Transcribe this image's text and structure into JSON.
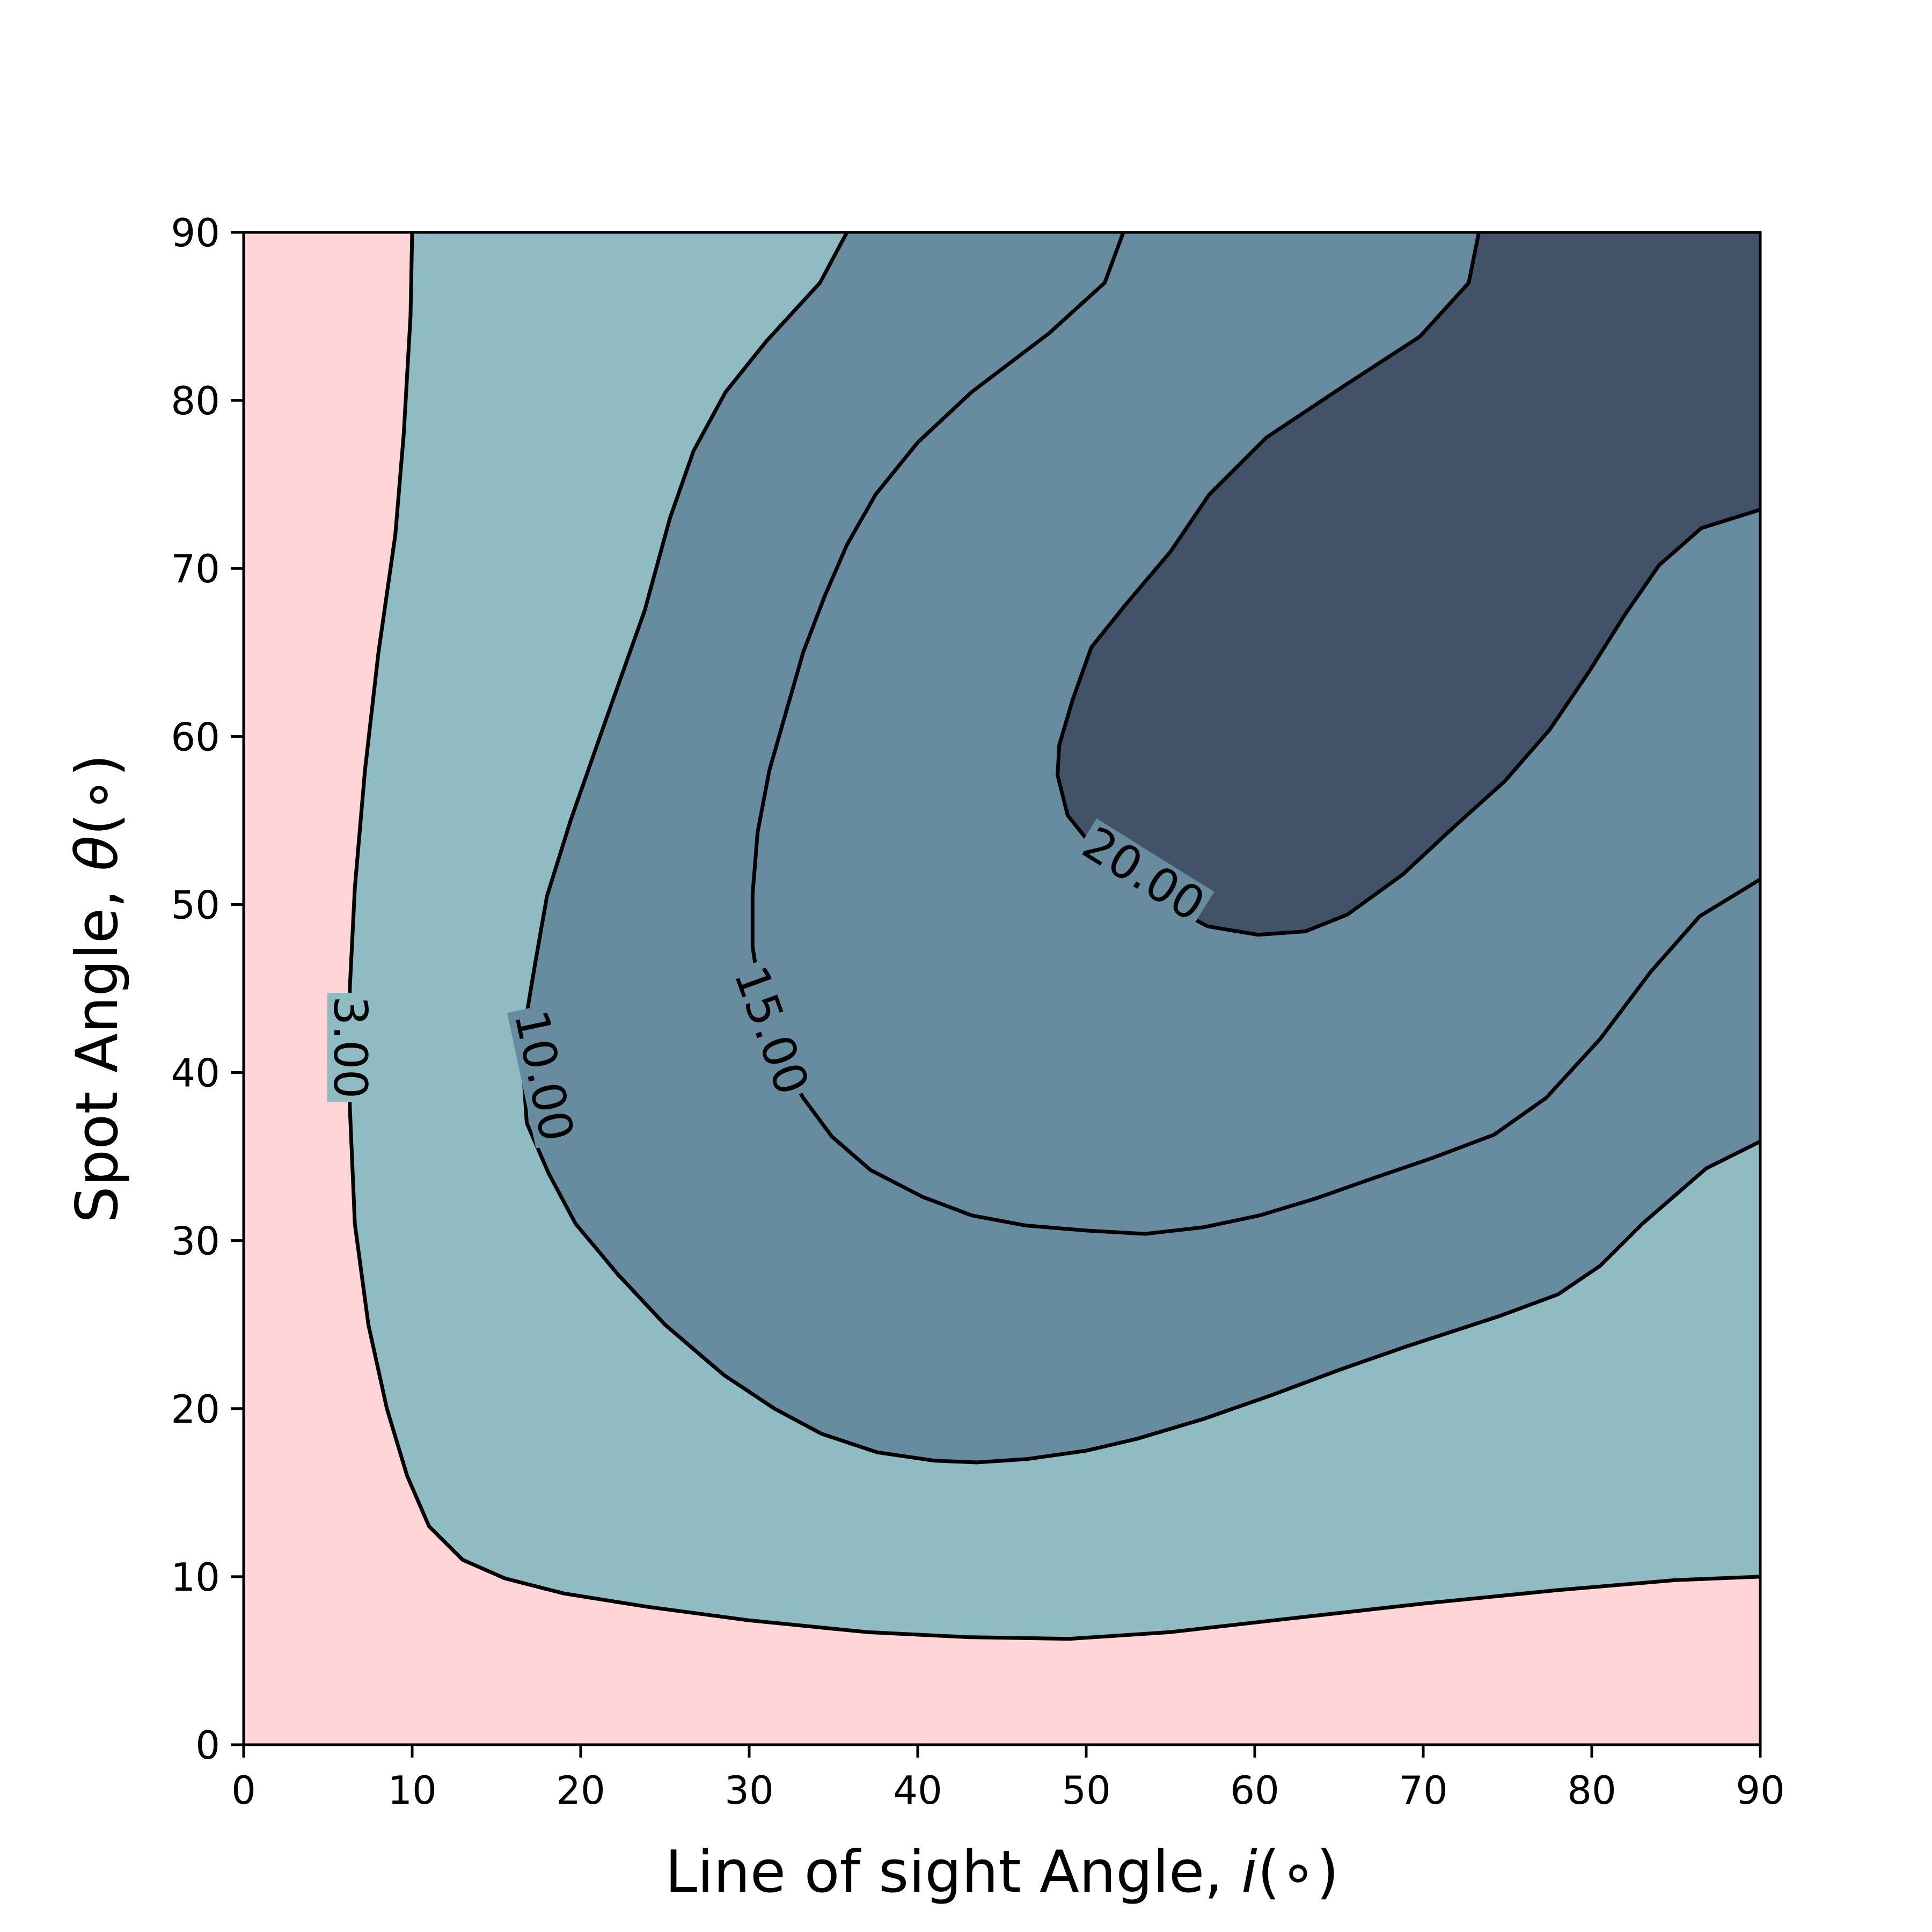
{
  "chart_data": {
    "type": "contour",
    "xlabel_main": "Line of sight Angle, ",
    "xlabel_var": "i",
    "xlabel_unit": "(∘)",
    "ylabel_main": "Spot Angle, ",
    "ylabel_var": "θ",
    "ylabel_unit": "(∘)",
    "xlim": [
      0,
      90
    ],
    "ylim": [
      0,
      90
    ],
    "xticks": [
      0,
      10,
      20,
      30,
      40,
      50,
      60,
      70,
      80,
      90
    ],
    "yticks": [
      0,
      10,
      20,
      30,
      40,
      50,
      60,
      70,
      80,
      90
    ],
    "colors": {
      "below_3": "#ffd5d7",
      "from_3_to_10": "#8ebcc2",
      "from_10_to_20": "#678c9f",
      "above_20": "#425369",
      "line": "#000000"
    },
    "levels": [
      {
        "value": 3,
        "label": "3.00",
        "label_at": [
          6.3,
          41.5
        ],
        "label_angle": 90,
        "points": [
          [
            10,
            90
          ],
          [
            9.9,
            85
          ],
          [
            9.5,
            78
          ],
          [
            9,
            72
          ],
          [
            8,
            65
          ],
          [
            7.2,
            58
          ],
          [
            6.6,
            51
          ],
          [
            6.3,
            45
          ],
          [
            6.3,
            38
          ],
          [
            6.6,
            31
          ],
          [
            7.4,
            25
          ],
          [
            8.5,
            20
          ],
          [
            9.7,
            16
          ],
          [
            11,
            13
          ],
          [
            13,
            11
          ],
          [
            15.5,
            9.9
          ],
          [
            19,
            9
          ],
          [
            24,
            8.2
          ],
          [
            30,
            7.4
          ],
          [
            37,
            6.7
          ],
          [
            43,
            6.4
          ],
          [
            49,
            6.3
          ],
          [
            55,
            6.7
          ],
          [
            62,
            7.5
          ],
          [
            70,
            8.4
          ],
          [
            78,
            9.2
          ],
          [
            85,
            9.8
          ],
          [
            90,
            10
          ]
        ]
      },
      {
        "value": 10,
        "label": "10.00",
        "label_at": [
          17.8,
          39.8
        ],
        "label_angle": 78,
        "points": [
          [
            35.8,
            90
          ],
          [
            34.2,
            87
          ],
          [
            31,
            83.5
          ],
          [
            28.6,
            80.5
          ],
          [
            26.7,
            77
          ],
          [
            25.3,
            73
          ],
          [
            23.8,
            67.5
          ],
          [
            21.5,
            61
          ],
          [
            19.4,
            55
          ],
          [
            18,
            50.5
          ],
          [
            17.3,
            46.5
          ],
          [
            16.8,
            43.5
          ],
          [
            16.6,
            40
          ],
          [
            16.8,
            37
          ],
          [
            18.1,
            34
          ],
          [
            19.7,
            31
          ],
          [
            22.2,
            28
          ],
          [
            25,
            25
          ],
          [
            28.5,
            22
          ],
          [
            31.5,
            20
          ],
          [
            34.3,
            18.5
          ],
          [
            37.6,
            17.4
          ],
          [
            41,
            16.9
          ],
          [
            43.5,
            16.8
          ],
          [
            46.5,
            17
          ],
          [
            50,
            17.5
          ],
          [
            53,
            18.2
          ],
          [
            57,
            19.4
          ],
          [
            61,
            20.8
          ],
          [
            65,
            22.3
          ],
          [
            69,
            23.7
          ],
          [
            74.5,
            25.5
          ],
          [
            78,
            26.8
          ],
          [
            80.5,
            28.5
          ],
          [
            83,
            31
          ],
          [
            86.8,
            34.3
          ],
          [
            90,
            35.9
          ]
        ]
      },
      {
        "value": 15,
        "label": "15.00",
        "label_at": [
          31.3,
          42.5
        ],
        "label_angle": 70,
        "points": [
          [
            52.2,
            90
          ],
          [
            51.1,
            87
          ],
          [
            47.8,
            84
          ],
          [
            43.2,
            80.5
          ],
          [
            40,
            77.5
          ],
          [
            37.5,
            74.4
          ],
          [
            35.8,
            71.4
          ],
          [
            34.5,
            68.4
          ],
          [
            33.2,
            65
          ],
          [
            32.2,
            61.5
          ],
          [
            31.2,
            58
          ],
          [
            30.5,
            54.3
          ],
          [
            30.2,
            50.6
          ],
          [
            30.2,
            47.5
          ],
          [
            30.7,
            44.2
          ],
          [
            31.8,
            41
          ],
          [
            33.2,
            38.5
          ],
          [
            34.9,
            36.2
          ],
          [
            37.2,
            34.2
          ],
          [
            40.3,
            32.6
          ],
          [
            43.2,
            31.5
          ],
          [
            46.4,
            30.9
          ],
          [
            50,
            30.6
          ],
          [
            53.5,
            30.4
          ],
          [
            57,
            30.8
          ],
          [
            60.3,
            31.5
          ],
          [
            63.6,
            32.5
          ],
          [
            67,
            33.7
          ],
          [
            70.5,
            34.9
          ],
          [
            74.2,
            36.3
          ],
          [
            77.3,
            38.5
          ],
          [
            80.5,
            42
          ],
          [
            83.5,
            46
          ],
          [
            86.4,
            49.3
          ],
          [
            90,
            51.5
          ]
        ]
      },
      {
        "value": 20,
        "label": "20.00",
        "label_at": [
          53.4,
          51.8
        ],
        "label_angle": 32,
        "points": [
          [
            73.3,
            90
          ],
          [
            72.7,
            87
          ],
          [
            69.8,
            83.8
          ],
          [
            65.2,
            80.8
          ],
          [
            60.7,
            77.8
          ],
          [
            57.3,
            74.4
          ],
          [
            55,
            71
          ],
          [
            52.3,
            67.8
          ],
          [
            50.3,
            65.3
          ],
          [
            49.2,
            62.2
          ],
          [
            48.4,
            59.5
          ],
          [
            48.3,
            57.7
          ],
          [
            48.9,
            55.3
          ],
          [
            50.5,
            53.3
          ],
          [
            52.7,
            51.5
          ],
          [
            55,
            49.9
          ],
          [
            57.2,
            48.7
          ],
          [
            60.2,
            48.2
          ],
          [
            63,
            48.4
          ],
          [
            65.5,
            49.4
          ],
          [
            68.8,
            51.8
          ],
          [
            71.8,
            54.6
          ],
          [
            74.8,
            57.3
          ],
          [
            77.5,
            60.4
          ],
          [
            79.8,
            63.8
          ],
          [
            82,
            67.3
          ],
          [
            84,
            70.2
          ],
          [
            86.5,
            72.4
          ],
          [
            90,
            73.5
          ]
        ]
      }
    ]
  }
}
